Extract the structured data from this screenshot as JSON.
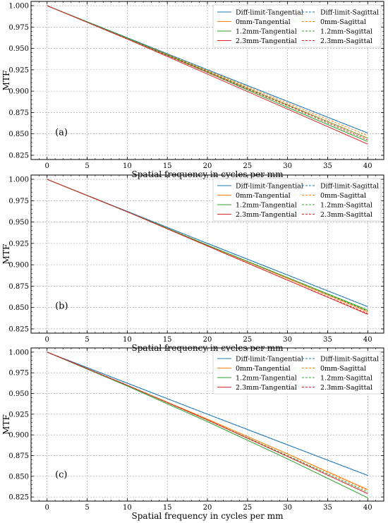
{
  "figure": {
    "colors": {
      "diff_limit": "#1f77b4",
      "mm0": "#ff7f0e",
      "mm12": "#2ca02c",
      "mm23": "#d62728"
    }
  },
  "chart_data": [
    {
      "type": "line",
      "panel_label": "(a)",
      "xlabel": "Spatial frequency in cycles per mm",
      "ylabel": "MTF",
      "xlim": [
        -2,
        42
      ],
      "ylim": [
        0.82,
        1.005
      ],
      "xticks": [
        0,
        5,
        10,
        15,
        20,
        25,
        30,
        35,
        40
      ],
      "yticks": [
        0.825,
        0.85,
        0.875,
        0.9,
        0.925,
        0.95,
        0.975,
        1.0
      ],
      "ytick_labels": [
        "0.825",
        "0.850",
        "0.875",
        "0.900",
        "0.925",
        "0.950",
        "0.975",
        "1.000"
      ],
      "grid": true,
      "legend": "top-right, 2 columns",
      "series": [
        {
          "name": "Diff-limit-Tangential",
          "style": "solid",
          "color": "#1f77b4",
          "x": [
            0,
            10,
            20,
            30,
            40
          ],
          "y": [
            1.0,
            0.9625,
            0.925,
            0.888,
            0.851
          ]
        },
        {
          "name": "0mm-Tangential",
          "style": "solid",
          "color": "#ff7f0e",
          "x": [
            0,
            10,
            20,
            30,
            40
          ],
          "y": [
            1.0,
            0.962,
            0.923,
            0.884,
            0.845
          ]
        },
        {
          "name": "1.2mm-Tangential",
          "style": "solid",
          "color": "#2ca02c",
          "x": [
            0,
            10,
            20,
            30,
            40
          ],
          "y": [
            1.0,
            0.962,
            0.922,
            0.881,
            0.841
          ]
        },
        {
          "name": "2.3mm-Tangential",
          "style": "solid",
          "color": "#d62728",
          "x": [
            0,
            10,
            20,
            30,
            40
          ],
          "y": [
            1.0,
            0.961,
            0.92,
            0.879,
            0.838
          ]
        },
        {
          "name": "Diff-limit-Sagittal",
          "style": "dashed",
          "color": "#1f77b4",
          "x": [
            0,
            10,
            20,
            30,
            40
          ],
          "y": [
            1.0,
            0.9625,
            0.925,
            0.888,
            0.851
          ]
        },
        {
          "name": "0mm-Sagittal",
          "style": "dashed",
          "color": "#ff7f0e",
          "x": [
            0,
            10,
            20,
            30,
            40
          ],
          "y": [
            1.0,
            0.962,
            0.924,
            0.886,
            0.848
          ]
        },
        {
          "name": "1.2mm-Sagittal",
          "style": "dashed",
          "color": "#2ca02c",
          "x": [
            0,
            10,
            20,
            30,
            40
          ],
          "y": [
            1.0,
            0.962,
            0.923,
            0.884,
            0.845
          ]
        },
        {
          "name": "2.3mm-Sagittal",
          "style": "dashed",
          "color": "#d62728",
          "x": [
            0,
            10,
            20,
            30,
            40
          ],
          "y": [
            1.0,
            0.961,
            0.922,
            0.883,
            0.843
          ]
        }
      ]
    },
    {
      "type": "line",
      "panel_label": "(b)",
      "xlabel": "Spatial frequency in cycles per mm",
      "ylabel": "MTF",
      "xlim": [
        -2,
        42
      ],
      "ylim": [
        0.82,
        1.005
      ],
      "xticks": [
        0,
        5,
        10,
        15,
        20,
        25,
        30,
        35,
        40
      ],
      "yticks": [
        0.825,
        0.85,
        0.875,
        0.9,
        0.925,
        0.95,
        0.975,
        1.0
      ],
      "ytick_labels": [
        "0.825",
        "0.850",
        "0.875",
        "0.900",
        "0.925",
        "0.950",
        "0.975",
        "1.000"
      ],
      "grid": true,
      "legend": "top-right, 2 columns",
      "series": [
        {
          "name": "Diff-limit-Tangential",
          "style": "solid",
          "color": "#1f77b4",
          "x": [
            0,
            10,
            20,
            30,
            40
          ],
          "y": [
            1.0,
            0.9625,
            0.925,
            0.888,
            0.851
          ]
        },
        {
          "name": "0mm-Tangential",
          "style": "solid",
          "color": "#ff7f0e",
          "x": [
            0,
            10,
            20,
            30,
            40
          ],
          "y": [
            1.0,
            0.962,
            0.923,
            0.884,
            0.845
          ]
        },
        {
          "name": "1.2mm-Tangential",
          "style": "solid",
          "color": "#2ca02c",
          "x": [
            0,
            10,
            20,
            30,
            40
          ],
          "y": [
            1.0,
            0.962,
            0.923,
            0.885,
            0.847
          ]
        },
        {
          "name": "2.3mm-Tangential",
          "style": "solid",
          "color": "#d62728",
          "x": [
            0,
            10,
            20,
            30,
            40
          ],
          "y": [
            1.0,
            0.962,
            0.922,
            0.882,
            0.842
          ]
        },
        {
          "name": "Diff-limit-Sagittal",
          "style": "dashed",
          "color": "#1f77b4",
          "x": [
            0,
            10,
            20,
            30,
            40
          ],
          "y": [
            1.0,
            0.9625,
            0.925,
            0.888,
            0.851
          ]
        },
        {
          "name": "0mm-Sagittal",
          "style": "dashed",
          "color": "#ff7f0e",
          "x": [
            0,
            10,
            20,
            30,
            40
          ],
          "y": [
            1.0,
            0.962,
            0.923,
            0.884,
            0.845
          ]
        },
        {
          "name": "1.2mm-Sagittal",
          "style": "dashed",
          "color": "#2ca02c",
          "x": [
            0,
            10,
            20,
            30,
            40
          ],
          "y": [
            1.0,
            0.962,
            0.923,
            0.885,
            0.846
          ]
        },
        {
          "name": "2.3mm-Sagittal",
          "style": "dashed",
          "color": "#d62728",
          "x": [
            0,
            10,
            20,
            30,
            40
          ],
          "y": [
            1.0,
            0.962,
            0.922,
            0.882,
            0.843
          ]
        }
      ]
    },
    {
      "type": "line",
      "panel_label": "(c)",
      "xlabel": "Spatial frequency in cycles per mm",
      "ylabel": "MTF",
      "xlim": [
        -2,
        42
      ],
      "ylim": [
        0.82,
        1.005
      ],
      "xticks": [
        0,
        5,
        10,
        15,
        20,
        25,
        30,
        35,
        40
      ],
      "yticks": [
        0.825,
        0.85,
        0.875,
        0.9,
        0.925,
        0.95,
        0.975,
        1.0
      ],
      "ytick_labels": [
        "0.825",
        "0.850",
        "0.875",
        "0.900",
        "0.925",
        "0.950",
        "0.975",
        "1.000"
      ],
      "grid": true,
      "legend": "top-right, 2 columns",
      "series": [
        {
          "name": "Diff-limit-Tangential",
          "style": "solid",
          "color": "#1f77b4",
          "x": [
            0,
            10,
            20,
            30,
            40
          ],
          "y": [
            1.0,
            0.9625,
            0.925,
            0.888,
            0.851
          ]
        },
        {
          "name": "0mm-Tangential",
          "style": "solid",
          "color": "#ff7f0e",
          "x": [
            0,
            10,
            20,
            30,
            40
          ],
          "y": [
            1.0,
            0.96,
            0.919,
            0.877,
            0.834
          ]
        },
        {
          "name": "1.2mm-Tangential",
          "style": "solid",
          "color": "#2ca02c",
          "x": [
            0,
            10,
            20,
            30,
            40
          ],
          "y": [
            1.0,
            0.959,
            0.916,
            0.871,
            0.824
          ]
        },
        {
          "name": "2.3mm-Tangential",
          "style": "solid",
          "color": "#d62728",
          "x": [
            0,
            10,
            20,
            30,
            40
          ],
          "y": [
            1.0,
            0.96,
            0.918,
            0.874,
            0.829
          ]
        },
        {
          "name": "Diff-limit-Sagittal",
          "style": "dashed",
          "color": "#1f77b4",
          "x": [
            0,
            10,
            20,
            30,
            40
          ],
          "y": [
            1.0,
            0.9625,
            0.925,
            0.888,
            0.851
          ]
        },
        {
          "name": "0mm-Sagittal",
          "style": "dashed",
          "color": "#ff7f0e",
          "x": [
            0,
            10,
            20,
            30,
            40
          ],
          "y": [
            1.0,
            0.96,
            0.919,
            0.877,
            0.833
          ]
        },
        {
          "name": "1.2mm-Sagittal",
          "style": "dashed",
          "color": "#2ca02c",
          "x": [
            0,
            10,
            20,
            30,
            40
          ],
          "y": [
            1.0,
            0.96,
            0.918,
            0.875,
            0.831
          ]
        },
        {
          "name": "2.3mm-Sagittal",
          "style": "dashed",
          "color": "#d62728",
          "x": [
            0,
            10,
            20,
            30,
            40
          ],
          "y": [
            1.0,
            0.96,
            0.918,
            0.874,
            0.829
          ]
        }
      ]
    }
  ]
}
